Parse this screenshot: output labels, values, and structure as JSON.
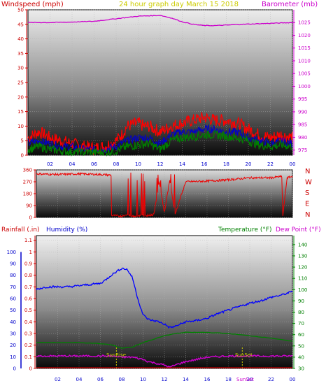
{
  "header": {
    "left": "Windspeed (mph)",
    "center": "24 hour graph day   March 15 2018",
    "right": "Barometer (mb)",
    "rainfall": "Rainfall (.in)",
    "humidity": "Humidity (%)",
    "temperature": "Temperature (°F)",
    "dewpoint": "Dew Point (°F)",
    "sunrise": "SunRise",
    "sunset": "SunSet",
    "sunset_axis": "SunSet"
  },
  "colors": {
    "wind": "#ff0000",
    "gust": "#0000cc",
    "green": "#008000",
    "barometer": "#cc00cc",
    "humidity": "#0000ff",
    "rain": "#cc0000",
    "temperature": "#008000",
    "dew": "#cc00cc",
    "sun": "#cccc00"
  },
  "chart_data": [
    {
      "type": "line",
      "name": "wind",
      "title": "24 hour graph day   March 15 2018",
      "xlabel": "",
      "ylabel": "Windspeed (mph)",
      "y2label": "Barometer (mb)",
      "x_ticks": [
        "02",
        "04",
        "06",
        "08",
        "10",
        "12",
        "14",
        "16",
        "18",
        "20",
        "22",
        "00"
      ],
      "y_ticks": [
        0,
        5,
        10,
        15,
        20,
        25,
        30,
        35,
        40,
        45,
        50
      ],
      "y2_ticks": [
        975,
        980,
        985,
        990,
        995,
        1000,
        1005,
        1010,
        1015,
        1020,
        1025
      ],
      "ylim": [
        0,
        50
      ],
      "y2lim": [
        973,
        1030
      ],
      "xlim": [
        0,
        24
      ],
      "series": [
        {
          "role": "windspeed",
          "x": [
            0,
            1,
            2,
            3,
            4,
            5,
            6,
            7,
            7.5,
            8,
            8.5,
            9,
            10,
            10.5,
            11,
            11.5,
            12,
            12.5,
            13,
            14,
            15,
            16,
            17,
            18,
            19,
            20,
            21,
            22,
            23,
            24
          ],
          "values": [
            6,
            8,
            6,
            5,
            4,
            3,
            2.5,
            3,
            4,
            5,
            7,
            10,
            11,
            10,
            10,
            9,
            8,
            9,
            10,
            11,
            12,
            13,
            12,
            12,
            11,
            9,
            7,
            6,
            7,
            6
          ]
        },
        {
          "role": "gust",
          "x": [
            0,
            1,
            2,
            3,
            4,
            5,
            6,
            7,
            8,
            9,
            10,
            11,
            12,
            13,
            14,
            15,
            16,
            17,
            18,
            19,
            20,
            21,
            22,
            23,
            24
          ],
          "values": [
            4,
            5,
            4,
            3,
            3,
            2,
            2,
            2,
            3,
            5,
            6,
            6,
            4,
            7,
            8,
            8,
            9,
            9,
            8,
            8,
            6,
            5,
            4,
            5,
            4
          ]
        },
        {
          "role": "average",
          "x": [
            0,
            1,
            2,
            3,
            4,
            5,
            6,
            7,
            8,
            9,
            10,
            11,
            12,
            13,
            14,
            15,
            16,
            17,
            18,
            19,
            20,
            21,
            22,
            23,
            24
          ],
          "values": [
            2,
            3,
            2,
            1.5,
            1,
            1,
            1,
            1,
            1.5,
            3,
            3.5,
            4,
            2,
            5,
            6,
            6.5,
            7,
            7,
            6.5,
            6,
            5,
            3.5,
            3,
            3.5,
            3
          ]
        },
        {
          "role": "barometer",
          "x": [
            0,
            2,
            4,
            6,
            8,
            10,
            12,
            13,
            14,
            15,
            16,
            17,
            18,
            20,
            22,
            24
          ],
          "values": [
            1025,
            1025,
            1025.2,
            1025.5,
            1026.5,
            1027.5,
            1027.8,
            1026.8,
            1025.3,
            1024.3,
            1023.8,
            1023.8,
            1024,
            1024.4,
            1024.7,
            1025
          ]
        }
      ]
    },
    {
      "type": "line",
      "name": "direction",
      "xlabel": "",
      "ylabel": "",
      "y_ticks": [
        0,
        90,
        180,
        270,
        360
      ],
      "compass": [
        "N",
        "W",
        "S",
        "E",
        "N"
      ],
      "ylim": [
        0,
        360
      ],
      "xlim": [
        0,
        24
      ],
      "series": [
        {
          "role": "direction",
          "x": [
            0,
            2,
            4,
            6,
            7,
            7.05,
            8,
            8.5,
            9,
            10,
            11,
            11.5,
            12,
            12.5,
            13,
            14,
            16,
            18,
            20,
            22,
            23,
            23.1,
            23.5,
            24
          ],
          "values": [
            330,
            325,
            330,
            325,
            320,
            15,
            10,
            20,
            10,
            15,
            20,
            270,
            40,
            280,
            25,
            270,
            275,
            285,
            300,
            300,
            310,
            10,
            300,
            310
          ]
        }
      ]
    },
    {
      "type": "line",
      "name": "humidity_temperature",
      "xlabel": "",
      "ylabel": "Rainfall (.in)",
      "y2label": "Temperature (°F)",
      "x_ticks": [
        "02",
        "04",
        "06",
        "08",
        "10",
        "12",
        "14",
        "16",
        "18",
        "20",
        "22",
        "00"
      ],
      "rain_ticks": [
        0,
        0.1,
        0.2,
        0.3,
        0.4,
        0.5,
        0.6,
        0.7,
        0.8,
        0.9,
        1,
        1.1
      ],
      "humidity_ticks": [
        0,
        10,
        20,
        30,
        40,
        50,
        60,
        70,
        80,
        90,
        100
      ],
      "temp_ticks": [
        30,
        40,
        50,
        60,
        70,
        80,
        90,
        100,
        110,
        120,
        130,
        140
      ],
      "rainlim": [
        0,
        1.14
      ],
      "templim": [
        30,
        148
      ],
      "xlim": [
        0,
        24
      ],
      "series": [
        {
          "role": "humidity",
          "x": [
            0,
            1,
            2,
            3,
            4,
            5,
            6,
            6.5,
            7,
            7.5,
            8,
            8.5,
            9,
            9.5,
            10,
            10.5,
            11,
            11.5,
            12,
            12.5,
            13,
            14,
            15,
            16,
            17,
            18,
            19,
            20,
            21,
            22,
            23,
            24
          ],
          "values": [
            68,
            70,
            70,
            70,
            71,
            72,
            73,
            76,
            80,
            83,
            86,
            85,
            78,
            60,
            46,
            42,
            41,
            40,
            38,
            35,
            36,
            40,
            41,
            43,
            47,
            50,
            53,
            56,
            58,
            61,
            63,
            66
          ]
        },
        {
          "role": "temperature",
          "x": [
            0,
            2,
            4,
            6,
            7,
            8,
            9,
            10,
            11,
            12,
            13,
            14,
            16,
            18,
            20,
            22,
            24
          ],
          "values": [
            53,
            53,
            53,
            52,
            51,
            48,
            49,
            53,
            56,
            59,
            61,
            62,
            62,
            61,
            59,
            57,
            54
          ]
        },
        {
          "role": "dewpoint",
          "x": [
            0,
            2,
            4,
            6,
            7,
            8,
            9,
            10,
            10.5,
            11,
            12,
            12.5,
            13,
            14,
            15,
            16,
            18,
            20,
            22,
            24
          ],
          "values": [
            41,
            41,
            41,
            41,
            41,
            40,
            40,
            38,
            36,
            35,
            33,
            31,
            33,
            36,
            38,
            40,
            41,
            41,
            41,
            41
          ]
        },
        {
          "role": "rainfall",
          "x": [
            0,
            24
          ],
          "values": [
            0,
            0
          ]
        }
      ],
      "sunrise_x": 7.5,
      "sunset_x": 19.3
    }
  ]
}
